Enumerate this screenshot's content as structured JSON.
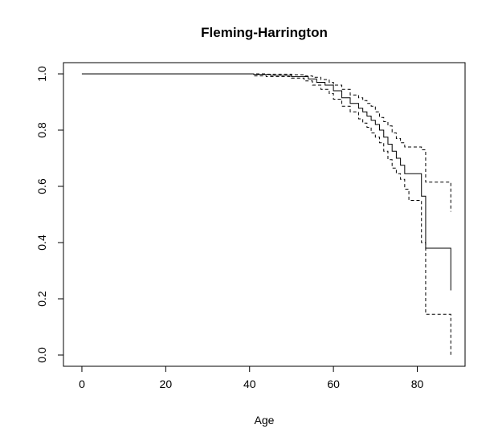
{
  "chart_data": {
    "type": "line",
    "title": "Fleming-Harrington",
    "xlabel": "Age",
    "ylabel": "",
    "xlim": [
      -4.4,
      91.4
    ],
    "ylim": [
      -0.04,
      1.04
    ],
    "x_ticks": [
      0,
      20,
      40,
      60,
      80
    ],
    "y_ticks": [
      0.0,
      0.2,
      0.4,
      0.6,
      0.8,
      1.0
    ],
    "x_tick_labels": [
      "0",
      "20",
      "40",
      "60",
      "80"
    ],
    "y_tick_labels": [
      "0.0",
      "0.2",
      "0.4",
      "0.6",
      "0.8",
      "1.0"
    ],
    "grid": false,
    "legend": "none",
    "series": [
      {
        "style": "solid",
        "x": [
          0,
          41,
          45,
          50,
          54,
          56,
          58,
          60,
          62,
          64,
          66,
          67,
          68,
          69,
          70,
          71,
          72,
          73,
          74,
          75,
          76,
          77,
          78,
          79,
          81,
          82,
          88
        ],
        "y": [
          1.0,
          0.998,
          0.995,
          0.99,
          0.982,
          0.97,
          0.96,
          0.94,
          0.915,
          0.895,
          0.878,
          0.865,
          0.85,
          0.835,
          0.82,
          0.8,
          0.775,
          0.75,
          0.725,
          0.7,
          0.675,
          0.645,
          0.645,
          0.645,
          0.565,
          0.38,
          0.23
        ]
      },
      {
        "style": "dashed",
        "x": [
          0,
          41,
          44,
          50,
          53,
          55,
          57,
          59,
          60,
          62,
          64,
          66,
          67,
          68,
          69,
          70,
          71,
          72,
          73,
          74,
          75,
          76,
          77,
          78,
          79,
          81,
          82,
          88
        ],
        "y": [
          1.0,
          1.0,
          0.999,
          0.997,
          0.993,
          0.988,
          0.98,
          0.97,
          0.96,
          0.945,
          0.925,
          0.915,
          0.905,
          0.895,
          0.885,
          0.865,
          0.845,
          0.83,
          0.815,
          0.79,
          0.77,
          0.755,
          0.74,
          0.74,
          0.74,
          0.73,
          0.615,
          0.51
        ]
      },
      {
        "style": "dashed",
        "x": [
          0,
          41,
          44,
          50,
          53,
          55,
          57,
          59,
          60,
          62,
          64,
          66,
          67,
          68,
          69,
          70,
          71,
          72,
          73,
          74,
          75,
          76,
          77,
          78,
          79,
          81,
          82,
          88
        ],
        "y": [
          1.0,
          0.993,
          0.99,
          0.985,
          0.975,
          0.96,
          0.945,
          0.93,
          0.91,
          0.885,
          0.865,
          0.84,
          0.825,
          0.81,
          0.79,
          0.775,
          0.755,
          0.725,
          0.695,
          0.665,
          0.645,
          0.625,
          0.59,
          0.55,
          0.55,
          0.4,
          0.145,
          0.0
        ]
      }
    ]
  }
}
